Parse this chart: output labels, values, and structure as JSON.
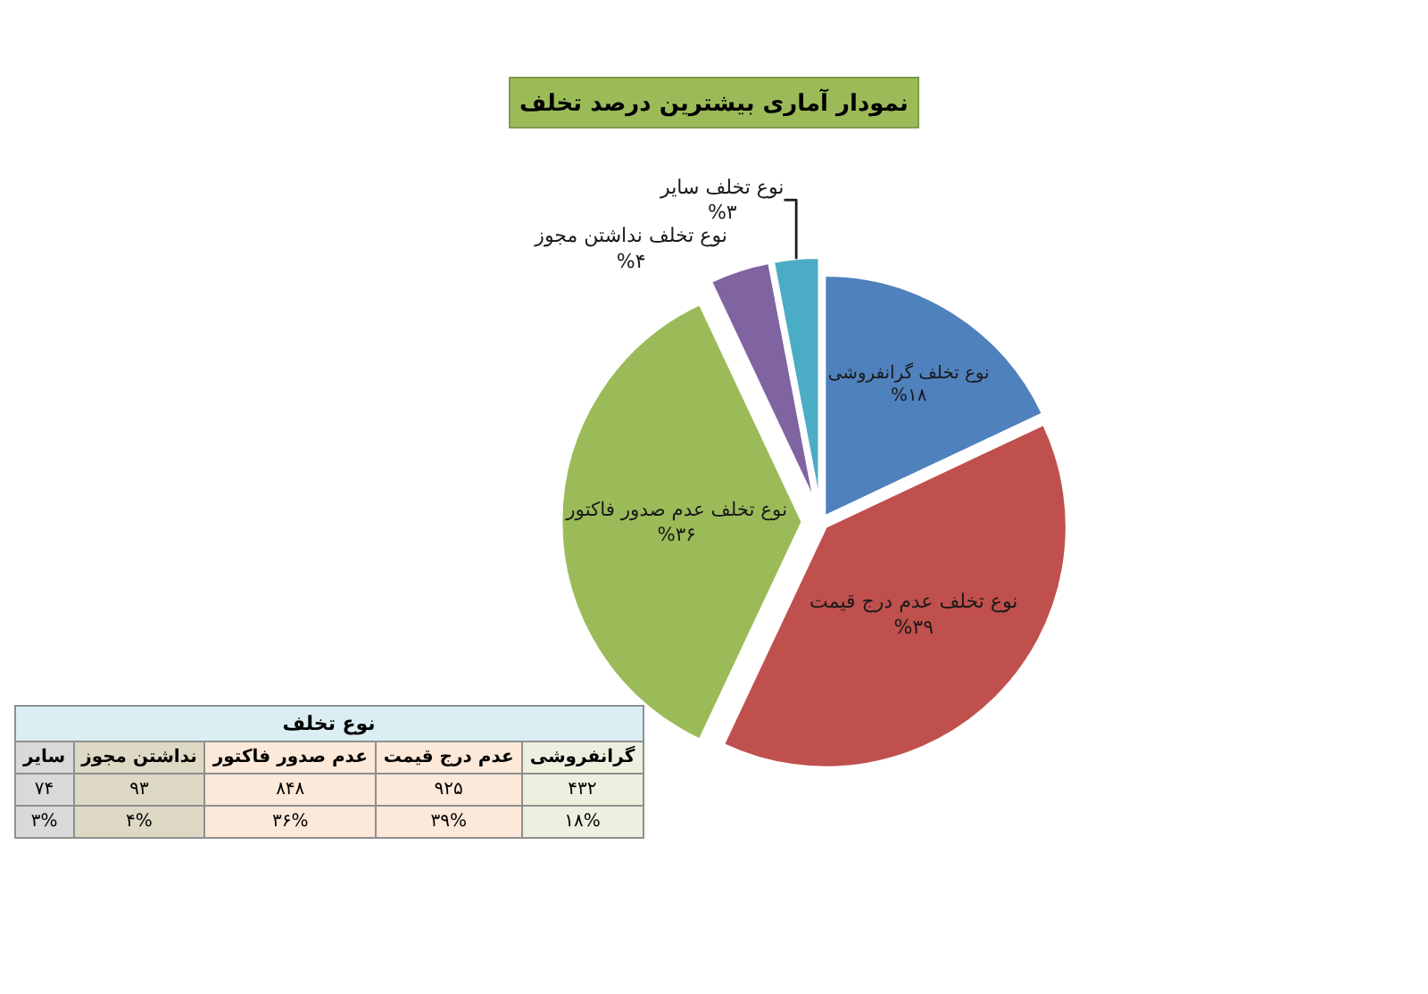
{
  "chart_data": [
    {
      "type": "pie",
      "title": "نمودار آماری بیشترین درصد تخلف",
      "categories": [
        "نوع تخلف گرانفروشی",
        "نوع تخلف عدم درج قیمت",
        "نوع تخلف عدم صدور فاکتور",
        "نوع تخلف نداشتن مجوز",
        "نوع تخلف سایر"
      ],
      "values": [
        18,
        39,
        36,
        4,
        3
      ],
      "value_labels": [
        "%۱۸",
        "%۳۹",
        "%۳۶",
        "%۴",
        "%۳"
      ],
      "colors": [
        "#4f81bd",
        "#c0504d",
        "#9bbb59",
        "#8064a2",
        "#4bacc6"
      ]
    },
    {
      "type": "other",
      "title": "نوع تخلف",
      "categories": [
        "سایر",
        "نداشتن مجوز",
        "عدم صدور فاکتور",
        "عدم درج قیمت",
        "گرانفروشی"
      ],
      "colors": [
        "#d9d9d9",
        "#ddd9c4",
        "#fde9d9",
        "#fde9d9",
        "#ebf1de"
      ],
      "series": [
        {
          "values": [
            74,
            93,
            848,
            925,
            432
          ],
          "value_labels": [
            "۷۴",
            "۹۳",
            "۸۴۸",
            "۹۲۵",
            "۴۳۲"
          ],
          "colors": [
            "#d9d9d9",
            "#ddd9c4",
            "#fde9d9",
            "#fde9d9",
            "#ebf1de"
          ]
        },
        {
          "values": [
            3,
            4,
            36,
            39,
            18
          ],
          "value_labels": [
            "۳%",
            "۴%",
            "۳۶%",
            "۳۹%",
            "۱۸%"
          ],
          "colors": [
            "#d9d9d9",
            "#ddd9c4",
            "#fde9d9",
            "#fde9d9",
            "#ebf1de"
          ]
        }
      ]
    }
  ]
}
